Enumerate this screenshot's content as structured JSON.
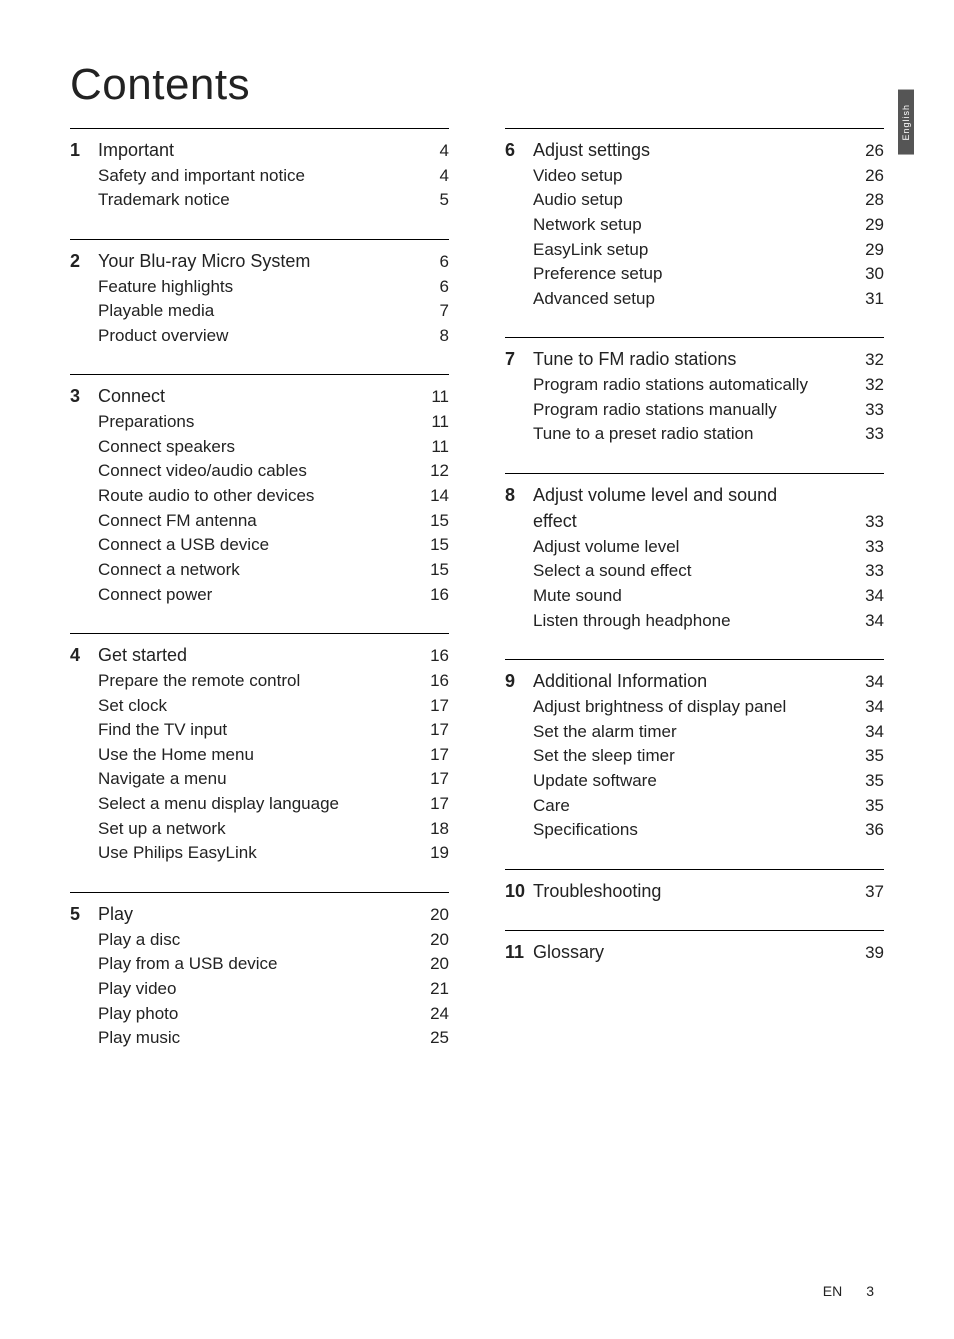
{
  "title": "Contents",
  "language_tab": "English",
  "footer": {
    "lang": "EN",
    "page": "3"
  },
  "left": [
    {
      "num": "1",
      "head": {
        "label": "Important",
        "page": "4"
      },
      "items": [
        {
          "label": "Safety and important notice",
          "page": "4"
        },
        {
          "label": "Trademark notice",
          "page": "5"
        }
      ]
    },
    {
      "num": "2",
      "head": {
        "label": "Your Blu-ray Micro System",
        "page": "6"
      },
      "items": [
        {
          "label": "Feature highlights",
          "page": "6"
        },
        {
          "label": "Playable media",
          "page": "7"
        },
        {
          "label": "Product overview",
          "page": "8"
        }
      ]
    },
    {
      "num": "3",
      "head": {
        "label": "Connect",
        "page": "11"
      },
      "items": [
        {
          "label": "Preparations",
          "page": "11"
        },
        {
          "label": "Connect speakers",
          "page": "11"
        },
        {
          "label": "Connect video/audio cables",
          "page": "12"
        },
        {
          "label": "Route audio to other devices",
          "page": "14"
        },
        {
          "label": "Connect FM antenna",
          "page": "15"
        },
        {
          "label": "Connect a USB device",
          "page": "15"
        },
        {
          "label": "Connect a network",
          "page": "15"
        },
        {
          "label": "Connect power",
          "page": "16"
        }
      ]
    },
    {
      "num": "4",
      "head": {
        "label": "Get started",
        "page": "16"
      },
      "items": [
        {
          "label": "Prepare the remote control",
          "page": "16"
        },
        {
          "label": "Set clock",
          "page": "17"
        },
        {
          "label": "Find the TV input",
          "page": "17"
        },
        {
          "label": "Use the Home menu",
          "page": "17"
        },
        {
          "label": "Navigate a menu",
          "page": "17"
        },
        {
          "label": "Select a menu display language",
          "page": "17"
        },
        {
          "label": "Set up a network",
          "page": "18"
        },
        {
          "label": "Use Philips EasyLink",
          "page": "19"
        }
      ]
    },
    {
      "num": "5",
      "head": {
        "label": "Play",
        "page": "20"
      },
      "items": [
        {
          "label": "Play a disc",
          "page": "20"
        },
        {
          "label": "Play from a USB device",
          "page": "20"
        },
        {
          "label": "Play video",
          "page": "21"
        },
        {
          "label": "Play photo",
          "page": "24"
        },
        {
          "label": "Play music",
          "page": "25"
        }
      ]
    }
  ],
  "right": [
    {
      "num": "6",
      "head": {
        "label": "Adjust settings",
        "page": "26"
      },
      "items": [
        {
          "label": "Video setup",
          "page": "26"
        },
        {
          "label": "Audio setup",
          "page": "28"
        },
        {
          "label": "Network setup",
          "page": "29"
        },
        {
          "label": "EasyLink setup",
          "page": "29"
        },
        {
          "label": "Preference setup",
          "page": "30"
        },
        {
          "label": "Advanced setup",
          "page": "31"
        }
      ]
    },
    {
      "num": "7",
      "head": {
        "label": "Tune to FM radio stations",
        "page": "32"
      },
      "items": [
        {
          "label": "Program radio stations automatically",
          "page": "32"
        },
        {
          "label": "Program radio stations manually",
          "page": "33"
        },
        {
          "label": "Tune to a preset radio station",
          "page": "33"
        }
      ]
    },
    {
      "num": "8",
      "head_multi": {
        "label1": "Adjust volume level and sound",
        "label2": "effect",
        "page": "33"
      },
      "items": [
        {
          "label": "Adjust volume level",
          "page": "33"
        },
        {
          "label": "Select a sound effect",
          "page": "33"
        },
        {
          "label": "Mute sound",
          "page": "34"
        },
        {
          "label": "Listen through headphone",
          "page": "34"
        }
      ]
    },
    {
      "num": "9",
      "head": {
        "label": "Additional Information",
        "page": "34"
      },
      "items": [
        {
          "label": "Adjust brightness of display panel",
          "page": "34"
        },
        {
          "label": "Set the alarm timer",
          "page": "34"
        },
        {
          "label": "Set the sleep timer",
          "page": "35"
        },
        {
          "label": "Update software",
          "page": "35"
        },
        {
          "label": "Care",
          "page": "35"
        },
        {
          "label": "Specifications",
          "page": "36"
        }
      ]
    },
    {
      "num": "10",
      "head": {
        "label": "Troubleshooting",
        "page": "37"
      },
      "items": []
    },
    {
      "num": "11",
      "head": {
        "label": "Glossary",
        "page": "39"
      },
      "items": []
    }
  ]
}
